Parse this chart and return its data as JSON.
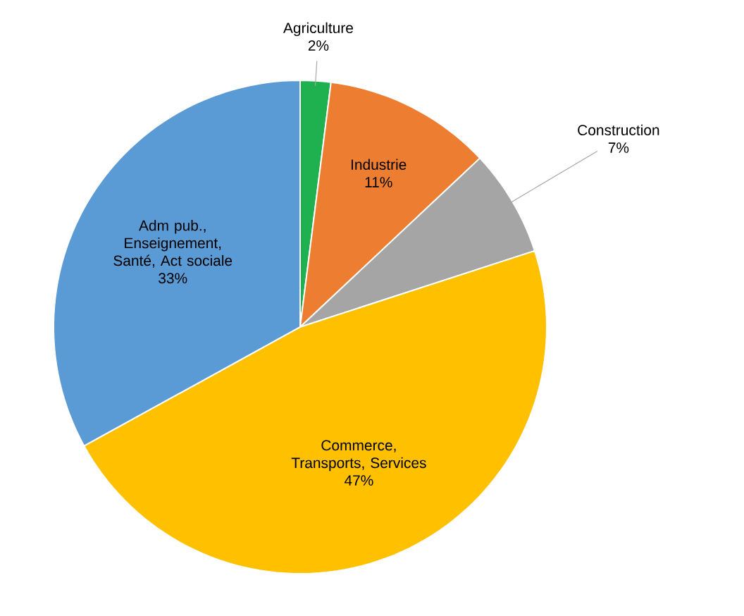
{
  "chart_data": {
    "type": "pie",
    "categories": [
      "Agriculture",
      "Industrie",
      "Construction",
      "Commerce, Transports, Services",
      "Adm pub., Enseignement, Santé, Act sociale"
    ],
    "values": [
      2,
      11,
      7,
      47,
      33
    ],
    "value_labels": [
      "2%",
      "11%",
      "7%",
      "47%",
      "33%"
    ],
    "colors": [
      "#1fb050",
      "#ed7d31",
      "#a5a5a5",
      "#ffc000",
      "#5b9bd5"
    ]
  }
}
